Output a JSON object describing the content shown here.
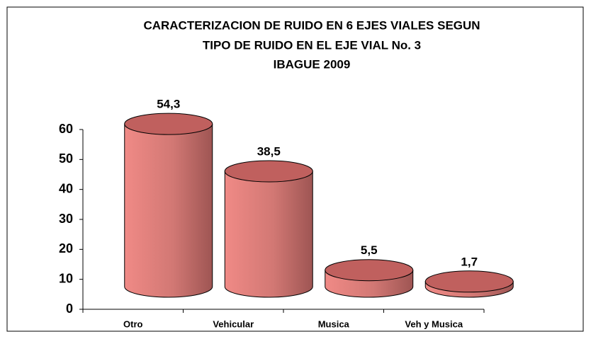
{
  "chart_data": {
    "type": "bar3d-cylinder",
    "title": [
      "CARACTERIZACION DE RUIDO EN 6 EJES VIALES SEGUN",
      "TIPO DE RUIDO EN EL EJE VIAL No. 3",
      "IBAGUE 2009"
    ],
    "categories": [
      "Otro",
      "Vehicular",
      "Musica",
      "Veh y Musica"
    ],
    "values": [
      54.3,
      38.5,
      5.5,
      1.7
    ],
    "value_labels": [
      "54,3",
      "38,5",
      "5,5",
      "1,7"
    ],
    "color": "#f08a86",
    "ylim": [
      0,
      60
    ],
    "yticks": [
      0,
      10,
      20,
      30,
      40,
      50,
      60
    ]
  }
}
